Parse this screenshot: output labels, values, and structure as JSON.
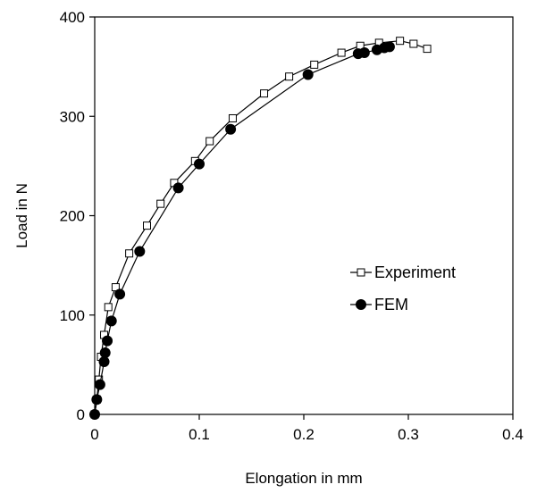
{
  "chart_data": {
    "type": "line",
    "xlabel": "Elongation in mm",
    "ylabel": "Load in N",
    "xlim": [
      0,
      0.4
    ],
    "ylim": [
      0,
      400
    ],
    "x_ticks": [
      "0",
      "0.1",
      "0.2",
      "0.3",
      "0.4"
    ],
    "y_ticks": [
      "0",
      "100",
      "200",
      "300",
      "400"
    ],
    "grid": false,
    "legend_position": "right",
    "series": [
      {
        "name": "Experiment",
        "marker": "open-square",
        "color": "#000000",
        "points": [
          [
            0,
            0
          ],
          [
            0.002,
            15
          ],
          [
            0.004,
            35
          ],
          [
            0.006,
            58
          ],
          [
            0.009,
            80
          ],
          [
            0.013,
            108
          ],
          [
            0.02,
            128
          ],
          [
            0.033,
            162
          ],
          [
            0.05,
            190
          ],
          [
            0.063,
            212
          ],
          [
            0.076,
            233
          ],
          [
            0.096,
            255
          ],
          [
            0.11,
            275
          ],
          [
            0.132,
            298
          ],
          [
            0.162,
            323
          ],
          [
            0.186,
            340
          ],
          [
            0.21,
            352
          ],
          [
            0.236,
            364
          ],
          [
            0.254,
            371
          ],
          [
            0.272,
            374
          ],
          [
            0.292,
            376
          ],
          [
            0.305,
            373
          ],
          [
            0.318,
            368
          ]
        ]
      },
      {
        "name": "FEM",
        "marker": "filled-circle",
        "color": "#000000",
        "points": [
          [
            0,
            0
          ],
          [
            0.002,
            15
          ],
          [
            0.005,
            30
          ],
          [
            0.009,
            53
          ],
          [
            0.01,
            62
          ],
          [
            0.012,
            74
          ],
          [
            0.016,
            94
          ],
          [
            0.024,
            121
          ],
          [
            0.043,
            164
          ],
          [
            0.08,
            228
          ],
          [
            0.1,
            252
          ],
          [
            0.13,
            287
          ],
          [
            0.204,
            342
          ],
          [
            0.252,
            363
          ],
          [
            0.258,
            364
          ],
          [
            0.27,
            367
          ],
          [
            0.277,
            369
          ],
          [
            0.282,
            370
          ]
        ]
      }
    ]
  }
}
